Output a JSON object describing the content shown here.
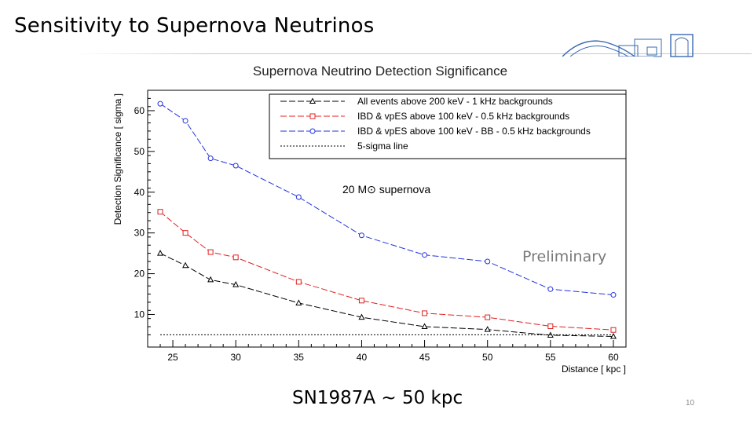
{
  "slide": {
    "title": "Sensitivity to Supernova Neutrinos",
    "annotation": "Preliminary",
    "footer_note": "SN1987A ~ 50 kpc",
    "page_number": "10"
  },
  "chart_data": {
    "type": "line",
    "title": "Supernova Neutrino Detection Significance",
    "xlabel": "Distance [ kpc ]",
    "ylabel": "Detection Significance [ sigma ]",
    "xlim": [
      23,
      61
    ],
    "ylim": [
      2,
      65
    ],
    "xticks": [
      25,
      30,
      35,
      40,
      45,
      50,
      55,
      60
    ],
    "yticks": [
      10,
      20,
      30,
      40,
      50,
      60
    ],
    "grid": false,
    "legend_position": "top",
    "label_text": "20 M⊙ supernova",
    "series": [
      {
        "name": "All events above 200 keV - 1 kHz backgrounds",
        "color": "#000000",
        "marker": "triangle",
        "dash": "8,3",
        "x": [
          24,
          26,
          28,
          30,
          35,
          40,
          45,
          50,
          55,
          60
        ],
        "y": [
          25,
          22,
          18.5,
          17.3,
          12.8,
          9.3,
          7.0,
          6.3,
          4.9,
          4.6
        ]
      },
      {
        "name": "IBD & vpES above 100 keV - 0.5 kHz backgrounds",
        "color": "#e02020",
        "marker": "square",
        "dash": "8,3",
        "x": [
          24,
          26,
          28,
          30,
          35,
          40,
          45,
          50,
          55,
          60
        ],
        "y": [
          35.2,
          30,
          25.3,
          24,
          18,
          13.4,
          10.3,
          9.3,
          7.1,
          6.2
        ]
      },
      {
        "name": "IBD & vpES above 100 keV - BB - 0.5 kHz backgrounds",
        "color": "#2233dd",
        "marker": "circle",
        "dash": "8,3",
        "x": [
          24,
          26,
          28,
          30,
          35,
          40,
          45,
          50,
          55,
          60
        ],
        "y": [
          61.7,
          57.5,
          48.3,
          46.5,
          38.8,
          29.4,
          24.6,
          23.0,
          16.2,
          14.8
        ]
      },
      {
        "name": "5-sigma line",
        "color": "#000000",
        "marker": "none",
        "dash": "2,2",
        "x": [
          24,
          60
        ],
        "y": [
          5,
          5
        ]
      }
    ]
  },
  "colors": {
    "frame": "#000000",
    "legend_border": "#000000",
    "title_rule": "#c8c8c8",
    "annotation": "#7a7a7a"
  }
}
